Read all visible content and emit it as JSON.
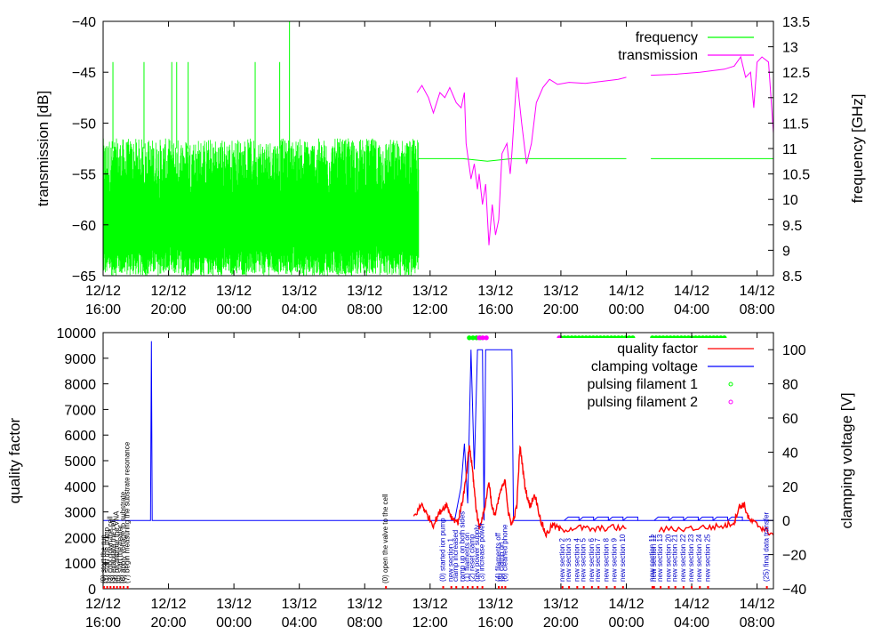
{
  "chart_data": [
    {
      "type": "line",
      "x_unit": "hours from 12/12 16:00",
      "xlim": [
        0,
        41
      ],
      "x_ticks": [
        {
          "x": 0,
          "date": "12/12",
          "time": "16:00"
        },
        {
          "x": 4,
          "date": "12/12",
          "time": "20:00"
        },
        {
          "x": 8,
          "date": "13/12",
          "time": "00:00"
        },
        {
          "x": 12,
          "date": "13/12",
          "time": "04:00"
        },
        {
          "x": 16,
          "date": "13/12",
          "time": "08:00"
        },
        {
          "x": 20,
          "date": "13/12",
          "time": "12:00"
        },
        {
          "x": 24,
          "date": "13/12",
          "time": "16:00"
        },
        {
          "x": 28,
          "date": "13/12",
          "time": "20:00"
        },
        {
          "x": 32,
          "date": "14/12",
          "time": "00:00"
        },
        {
          "x": 36,
          "date": "14/12",
          "time": "04:00"
        },
        {
          "x": 40,
          "date": "14/12",
          "time": "08:00"
        }
      ],
      "ylabel": "transmission [dB]",
      "ylim": [
        -65,
        -40
      ],
      "yticks": [
        -40,
        -45,
        -50,
        -55,
        -60,
        -65
      ],
      "y2label": "frequency [GHz]",
      "y2lim": [
        8.5,
        13.5
      ],
      "y2ticks": [
        13.5,
        13,
        12.5,
        12,
        11.5,
        11,
        10.5,
        10,
        9.5,
        9,
        8.5
      ],
      "legend_position": "top-right",
      "series": [
        {
          "name": "frequency",
          "color": "#00ff00",
          "axis": "y2",
          "style": "noisy band 8.5-11.2 GHz from x=0 to 19.3, then flat ~10.8 GHz",
          "spikes_x": [
            0.6,
            2.5,
            4.2,
            4.5,
            5.2,
            9.3,
            10.8,
            11.4
          ],
          "steady": [
            [
              19.3,
              10.8
            ],
            [
              22,
              10.8
            ],
            [
              23.5,
              10.75
            ],
            [
              25,
              10.8
            ],
            [
              27,
              10.8
            ],
            [
              32,
              10.8
            ],
            [
              32.8,
              null
            ],
            [
              33.5,
              10.8
            ],
            [
              41,
              10.8
            ]
          ]
        },
        {
          "name": "transmission",
          "color": "#ff00ff",
          "axis": "y",
          "points": [
            [
              19.2,
              -47
            ],
            [
              19.5,
              -46.3
            ],
            [
              19.9,
              -47.5
            ],
            [
              20.2,
              -49
            ],
            [
              20.6,
              -47
            ],
            [
              20.9,
              -47.5
            ],
            [
              21.2,
              -46.5
            ],
            [
              21.6,
              -48
            ],
            [
              21.9,
              -48.5
            ],
            [
              22.1,
              -47
            ],
            [
              22.2,
              -52
            ],
            [
              22.5,
              -55.5
            ],
            [
              22.7,
              -54
            ],
            [
              22.9,
              -56.5
            ],
            [
              23.0,
              -55
            ],
            [
              23.2,
              -58
            ],
            [
              23.4,
              -56
            ],
            [
              23.6,
              -62
            ],
            [
              23.8,
              -58
            ],
            [
              24.0,
              -61
            ],
            [
              24.2,
              -59.5
            ],
            [
              24.4,
              -53
            ],
            [
              24.7,
              -52
            ],
            [
              24.9,
              -55
            ],
            [
              25.0,
              -53
            ],
            [
              25.2,
              -48
            ],
            [
              25.3,
              -45.5
            ],
            [
              25.6,
              -50
            ],
            [
              25.9,
              -54
            ],
            [
              26.2,
              -52
            ],
            [
              26.5,
              -48
            ],
            [
              26.9,
              -46.5
            ],
            [
              27.3,
              -45.7
            ],
            [
              27.8,
              -46.2
            ],
            [
              28.5,
              -46
            ],
            [
              29.5,
              -46.1
            ],
            [
              30.5,
              -45.9
            ],
            [
              31.5,
              -45.7
            ],
            [
              32.0,
              -45.5
            ],
            [
              32.8,
              null
            ],
            [
              33.5,
              -45.3
            ],
            [
              35,
              -45.2
            ],
            [
              36.5,
              -45
            ],
            [
              38,
              -44.7
            ],
            [
              38.6,
              -44.4
            ],
            [
              39.0,
              -43.5
            ],
            [
              39.3,
              -45.5
            ],
            [
              39.6,
              -45
            ],
            [
              39.8,
              -48.5
            ],
            [
              40.0,
              -44
            ],
            [
              40.3,
              -43.5
            ],
            [
              40.7,
              -44
            ],
            [
              41,
              -51
            ]
          ]
        }
      ]
    },
    {
      "type": "line",
      "x_unit": "hours from 12/12 16:00",
      "xlim": [
        0,
        41
      ],
      "x_ticks": [
        {
          "x": 0,
          "date": "12/12",
          "time": "16:00"
        },
        {
          "x": 4,
          "date": "12/12",
          "time": "20:00"
        },
        {
          "x": 8,
          "date": "13/12",
          "time": "00:00"
        },
        {
          "x": 12,
          "date": "13/12",
          "time": "04:00"
        },
        {
          "x": 16,
          "date": "13/12",
          "time": "08:00"
        },
        {
          "x": 20,
          "date": "13/12",
          "time": "12:00"
        },
        {
          "x": 24,
          "date": "13/12",
          "time": "16:00"
        },
        {
          "x": 28,
          "date": "13/12",
          "time": "20:00"
        },
        {
          "x": 32,
          "date": "14/12",
          "time": "00:00"
        },
        {
          "x": 36,
          "date": "14/12",
          "time": "04:00"
        },
        {
          "x": 40,
          "date": "14/12",
          "time": "08:00"
        }
      ],
      "ylabel": "quality factor",
      "ylim": [
        0,
        10000
      ],
      "yticks": [
        10000,
        9000,
        8000,
        7000,
        6000,
        5000,
        4000,
        3000,
        2000,
        1000,
        0
      ],
      "y2label": "clamping voltage [V]",
      "y2lim": [
        -40,
        110
      ],
      "y2ticks": [
        100,
        80,
        60,
        40,
        20,
        0,
        -20,
        -40
      ],
      "legend_position": "top-right",
      "series": [
        {
          "name": "quality factor",
          "color": "#ff0000",
          "axis": "y",
          "points": [
            [
              19.0,
              2800
            ],
            [
              19.5,
              3300
            ],
            [
              19.8,
              2900
            ],
            [
              20.2,
              2500
            ],
            [
              20.6,
              3000
            ],
            [
              21.0,
              3300
            ],
            [
              21.3,
              2800
            ],
            [
              21.7,
              2600
            ],
            [
              22.0,
              3500
            ],
            [
              22.2,
              4300
            ],
            [
              22.4,
              5600
            ],
            [
              22.6,
              4600
            ],
            [
              22.8,
              3200
            ],
            [
              23.0,
              2400
            ],
            [
              23.3,
              3000
            ],
            [
              23.6,
              4200
            ],
            [
              23.8,
              3100
            ],
            [
              24.0,
              2900
            ],
            [
              24.3,
              3800
            ],
            [
              24.6,
              4200
            ],
            [
              24.8,
              2900
            ],
            [
              25.0,
              2500
            ],
            [
              25.3,
              3200
            ],
            [
              25.5,
              5600
            ],
            [
              25.8,
              4000
            ],
            [
              26.1,
              3200
            ],
            [
              26.4,
              3700
            ],
            [
              26.8,
              2600
            ],
            [
              27.1,
              2100
            ],
            [
              27.5,
              2500
            ],
            [
              28.0,
              2300
            ],
            [
              29.0,
              2400
            ],
            [
              30.0,
              2300
            ],
            [
              31.0,
              2400
            ],
            [
              32.0,
              2350
            ],
            [
              32.8,
              null
            ],
            [
              34.0,
              2300
            ],
            [
              35.5,
              2350
            ],
            [
              37.0,
              2400
            ],
            [
              38.0,
              2450
            ],
            [
              38.6,
              2600
            ],
            [
              38.9,
              3200
            ],
            [
              39.2,
              3300
            ],
            [
              39.5,
              2700
            ],
            [
              40.0,
              2500
            ],
            [
              40.5,
              2300
            ],
            [
              41,
              2100
            ]
          ]
        },
        {
          "name": "clamping voltage",
          "color": "#0000ff",
          "axis": "y2",
          "points": [
            [
              0,
              0
            ],
            [
              2.9,
              0
            ],
            [
              2.95,
              105
            ],
            [
              3.0,
              0
            ],
            [
              19.5,
              0
            ],
            [
              21.5,
              0
            ],
            [
              21.9,
              20
            ],
            [
              22.1,
              45
            ],
            [
              22.3,
              10
            ],
            [
              22.5,
              100
            ],
            [
              22.7,
              30
            ],
            [
              22.9,
              100
            ],
            [
              23.2,
              100
            ],
            [
              23.3,
              0
            ],
            [
              23.4,
              100
            ],
            [
              25.0,
              100
            ],
            [
              25.1,
              0
            ],
            [
              41,
              0
            ]
          ],
          "sawtooth_x": [
            28.2,
            29.1,
            30.0,
            30.9,
            31.8,
            33.7,
            34.6,
            35.5,
            36.4,
            37.3,
            38.2
          ],
          "sawtooth_peak": 2
        },
        {
          "name": "pulsing filament 1",
          "color": "#00ff00",
          "axis": "y",
          "marker": "circle",
          "value": 9800,
          "x_ranges": [
            [
              22.4,
              23.2
            ],
            [
              28.0,
              32.5
            ],
            [
              33.6,
              38.2
            ]
          ]
        },
        {
          "name": "pulsing filament 2",
          "color": "#ff00ff",
          "axis": "y",
          "marker": "circle",
          "value": 9800,
          "x_ranges": [
            [
              23.0,
              23.6
            ],
            [
              27.9,
              28.0
            ]
          ]
        }
      ],
      "annotations_black": [
        "(0) start the run",
        "(1) start the pump",
        "(2) cool down the cell",
        "(3) evacuate the cell",
        "(4) recalibrate the VNA",
        "(5) start the heater",
        "(6) apply voltage to substrate",
        "(7) begin measuring the substrate resonance",
        "(0) open the valve to the cell"
      ],
      "annotations_blue": [
        "(0) started ion pump",
        "new section 1",
        "clamp increased",
        "ramp up on both sides",
        "(1) filaments on",
        "(2) reset clamp",
        "new power supply",
        "(3) increase power",
        "(4) filaments off",
        "(5) clamp on",
        "(6) cleaned phone",
        "new section 2",
        "new section 3",
        "new section 4",
        "new section 5",
        "new section 6",
        "new section 7",
        "new section 8",
        "new section 9",
        "new section 10",
        "new section 11",
        "new section 12",
        "new section 13",
        "new section 20",
        "new section 21",
        "new section 22",
        "new section 23",
        "new section 24",
        "new section 25",
        "(25) final data transfer"
      ]
    }
  ]
}
